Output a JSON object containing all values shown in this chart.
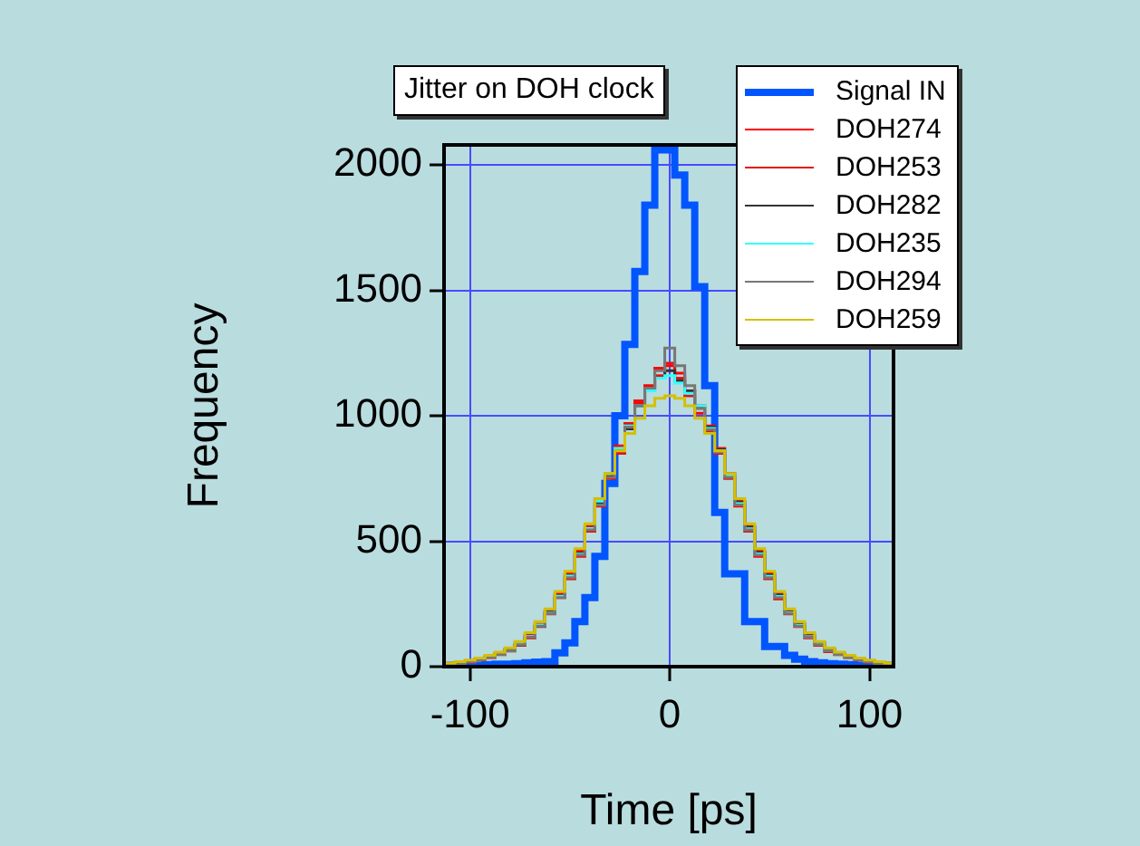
{
  "chart_data": {
    "type": "histogram",
    "title": "Jitter on DOH clock",
    "xlabel": "Time [ps]",
    "ylabel": "Frequency",
    "bins": [
      -112.5,
      -107.5,
      -102.5,
      -97.5,
      -92.5,
      -87.5,
      -82.5,
      -77.5,
      -72.5,
      -67.5,
      -62.5,
      -57.5,
      -52.5,
      -47.5,
      -42.5,
      -37.5,
      -32.5,
      -27.5,
      -22.5,
      -17.5,
      -12.5,
      -7.5,
      -2.5,
      2.5,
      7.5,
      12.5,
      17.5,
      22.5,
      27.5,
      32.5,
      37.5,
      42.5,
      47.5,
      52.5,
      57.5,
      62.5,
      67.5,
      72.5,
      77.5,
      82.5,
      87.5,
      92.5,
      97.5,
      102.5,
      107.5,
      112.5
    ],
    "series": [
      {
        "name": "Signal IN",
        "color": "#0055ff",
        "values": [
          5,
          5,
          5,
          5,
          8,
          10,
          10,
          12,
          15,
          18,
          20,
          55,
          95,
          180,
          275,
          440,
          730,
          1000,
          1285,
          1575,
          1840,
          2060,
          2060,
          1960,
          1840,
          1515,
          1120,
          615,
          370,
          370,
          180,
          180,
          80,
          80,
          45,
          30,
          20,
          15,
          12,
          10,
          8,
          5,
          5,
          5,
          5
        ]
      },
      {
        "name": "DOH274",
        "color": "#ff0000",
        "values": [
          8,
          14,
          22,
          30,
          36,
          52,
          70,
          85,
          125,
          160,
          220,
          290,
          350,
          460,
          540,
          670,
          750,
          880,
          960,
          1050,
          1120,
          1190,
          1200,
          1170,
          1100,
          1010,
          960,
          850,
          770,
          640,
          560,
          440,
          370,
          270,
          220,
          160,
          125,
          85,
          70,
          48,
          40,
          26,
          22,
          14,
          10
        ]
      },
      {
        "name": "DOH253",
        "color": "#e81010",
        "values": [
          12,
          16,
          18,
          26,
          40,
          48,
          62,
          95,
          115,
          170,
          210,
          275,
          370,
          440,
          560,
          640,
          770,
          850,
          970,
          1060,
          1100,
          1160,
          1210,
          1150,
          1080,
          1040,
          940,
          870,
          750,
          660,
          540,
          460,
          350,
          290,
          210,
          170,
          115,
          95,
          60,
          52,
          36,
          30,
          18,
          16,
          8
        ]
      },
      {
        "name": "DOH282",
        "color": "#333333",
        "values": [
          10,
          14,
          20,
          30,
          38,
          50,
          66,
          88,
          120,
          162,
          218,
          282,
          362,
          452,
          548,
          652,
          758,
          862,
          948,
          1040,
          1110,
          1150,
          1180,
          1140,
          1100,
          1030,
          955,
          865,
          765,
          655,
          555,
          455,
          365,
          285,
          218,
          168,
          122,
          92,
          66,
          50,
          38,
          28,
          20,
          14,
          10
        ]
      },
      {
        "name": "DOH235",
        "color": "#33ffff",
        "values": [
          9,
          15,
          21,
          28,
          39,
          51,
          64,
          91,
          121,
          166,
          214,
          281,
          361,
          449,
          551,
          660,
          770,
          870,
          960,
          1040,
          1100,
          1150,
          1160,
          1130,
          1090,
          1040,
          950,
          860,
          760,
          650,
          550,
          450,
          360,
          280,
          215,
          165,
          120,
          90,
          65,
          50,
          38,
          28,
          20,
          15,
          10
        ]
      },
      {
        "name": "DOH294",
        "color": "#777777",
        "values": [
          10,
          13,
          19,
          27,
          37,
          49,
          63,
          88,
          118,
          162,
          212,
          275,
          355,
          445,
          545,
          645,
          755,
          860,
          955,
          1040,
          1110,
          1180,
          1270,
          1200,
          1120,
          1030,
          945,
          855,
          755,
          645,
          545,
          445,
          355,
          275,
          212,
          162,
          118,
          88,
          63,
          49,
          37,
          27,
          19,
          13,
          10
        ]
      },
      {
        "name": "DOH259",
        "color": "#d4c000",
        "values": [
          14,
          20,
          26,
          34,
          45,
          58,
          75,
          100,
          135,
          180,
          230,
          300,
          380,
          470,
          570,
          670,
          770,
          860,
          930,
          990,
          1040,
          1070,
          1080,
          1070,
          1040,
          990,
          930,
          860,
          770,
          670,
          570,
          470,
          380,
          300,
          230,
          180,
          135,
          100,
          75,
          58,
          45,
          34,
          26,
          20,
          14
        ]
      }
    ],
    "xlim": [
      -113,
      112
    ],
    "ylim": [
      0,
      2080
    ],
    "xticks": [
      -100,
      0,
      100
    ],
    "yticks": [
      0,
      500,
      1000,
      1500,
      2000
    ],
    "grid": true,
    "legend": "top right"
  }
}
